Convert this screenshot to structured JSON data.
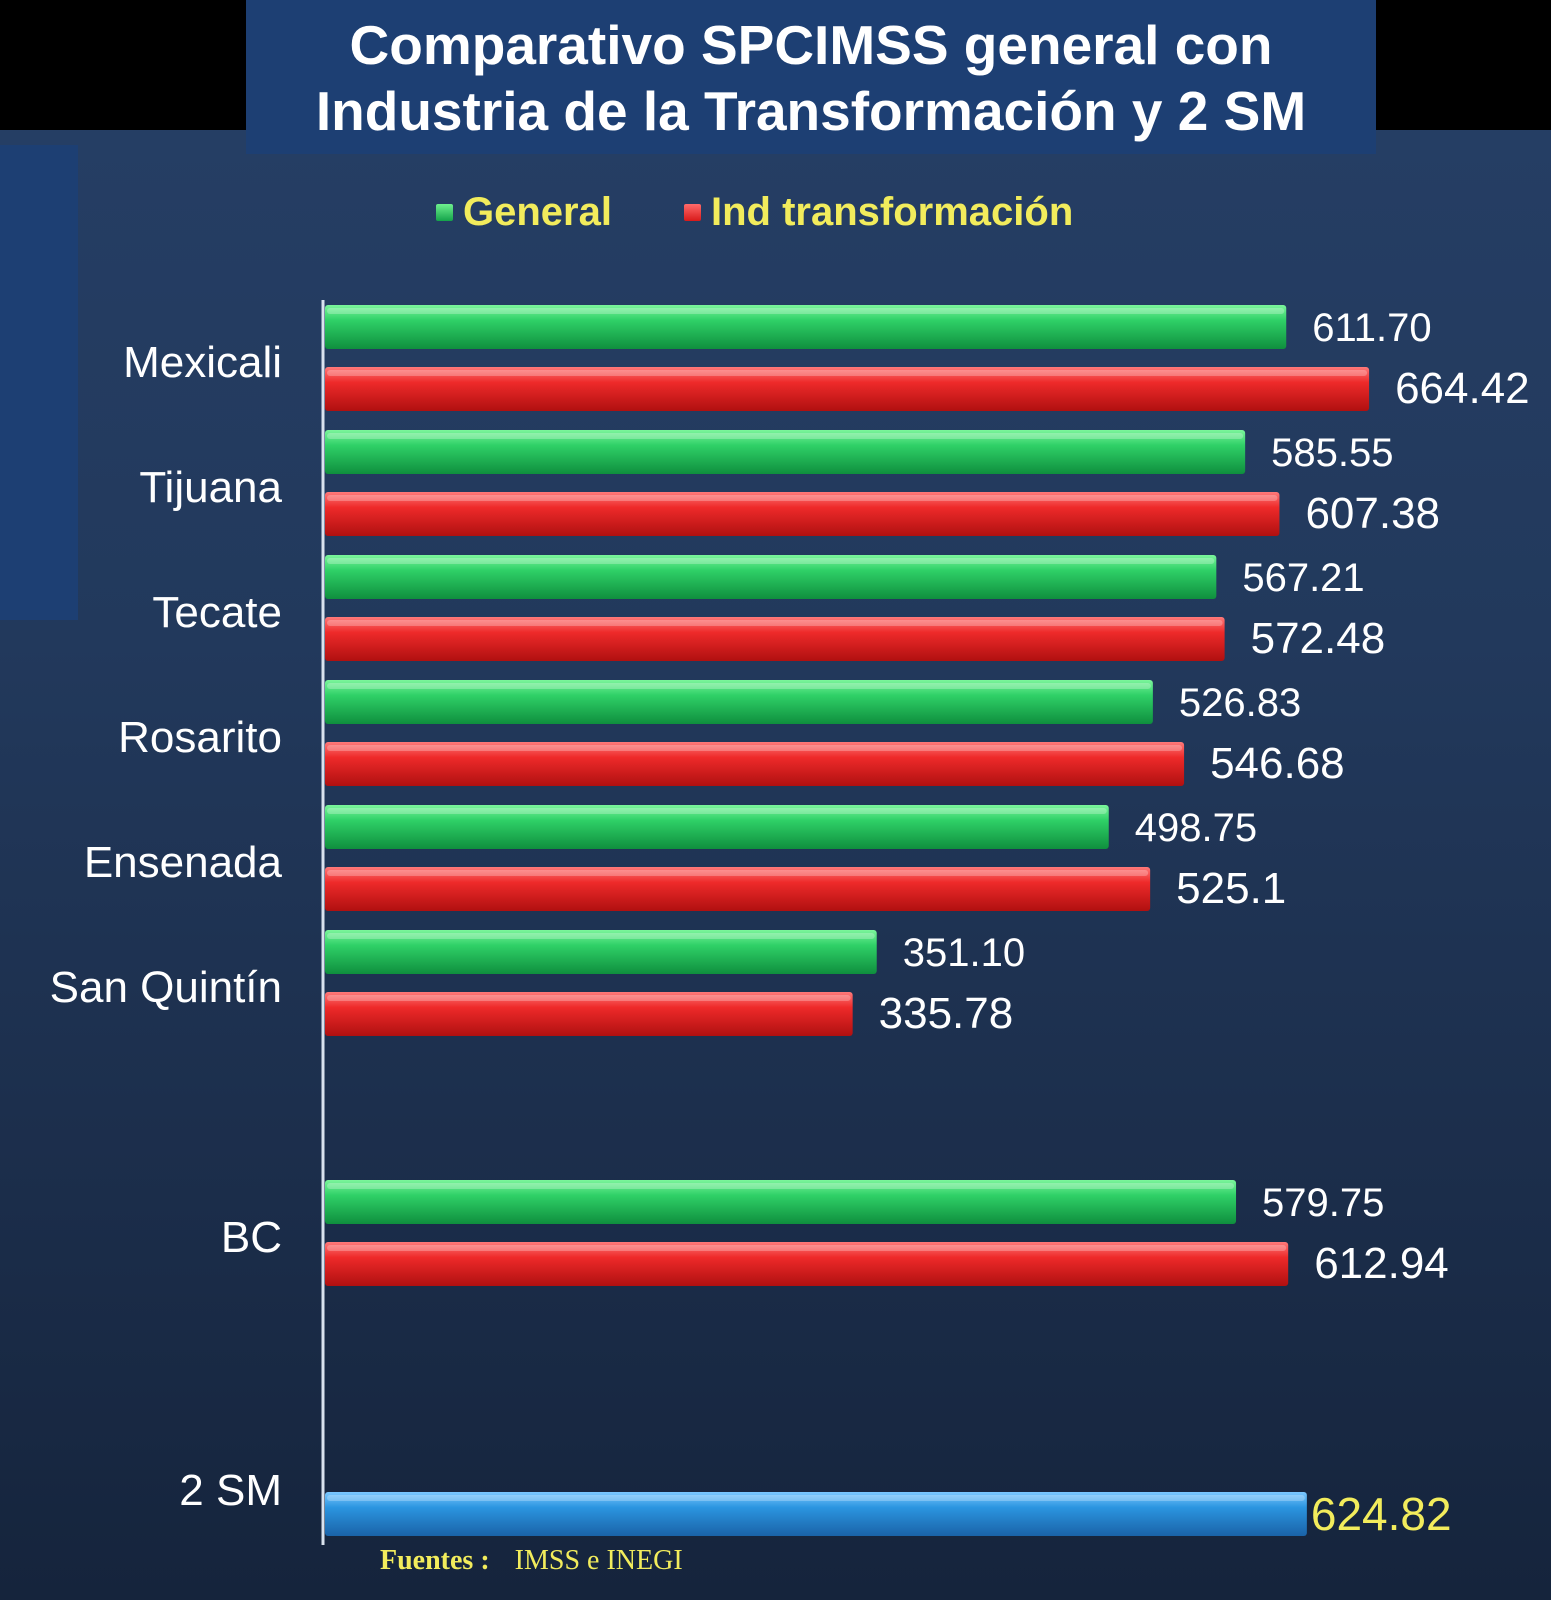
{
  "title": {
    "line1": "Comparativo SPCIMSS  general con",
    "line2": "Industria de la Transformación y 2 SM"
  },
  "legend": {
    "general": "General",
    "ind": "Ind transformación"
  },
  "source": {
    "label": "Fuentes :",
    "text": "IMSS e INEGI"
  },
  "colors": {
    "general": "#1fbf5a",
    "ind": "#e02020",
    "sm": "#2a8fd8",
    "label_highlight": "#f2ec5c"
  },
  "chart_data": {
    "type": "bar",
    "orientation": "horizontal",
    "categories": [
      "Mexicali",
      "Tijuana",
      "Tecate",
      "Rosarito",
      "Ensenada",
      "San Quintín",
      "BC",
      "2 SM"
    ],
    "series": [
      {
        "name": "General",
        "values": [
          611.7,
          585.55,
          567.21,
          526.83,
          498.75,
          351.1,
          579.75,
          null
        ],
        "labels": [
          "611.70",
          "585.55",
          "567.21",
          "526.83",
          "498.75",
          "351.10",
          "579.75",
          null
        ]
      },
      {
        "name": "Ind transformación",
        "values": [
          664.42,
          607.38,
          572.48,
          546.68,
          525.1,
          335.78,
          612.94,
          null
        ],
        "labels": [
          "664.42",
          "607.38",
          "572.48",
          "546.68",
          "525.1",
          "335.78",
          "612.94",
          null
        ]
      }
    ],
    "reference": {
      "category": "2 SM",
      "value": 624.82,
      "label": "624.82"
    },
    "xlim": [
      0,
      665
    ],
    "grid": false,
    "legend_position": "top"
  }
}
